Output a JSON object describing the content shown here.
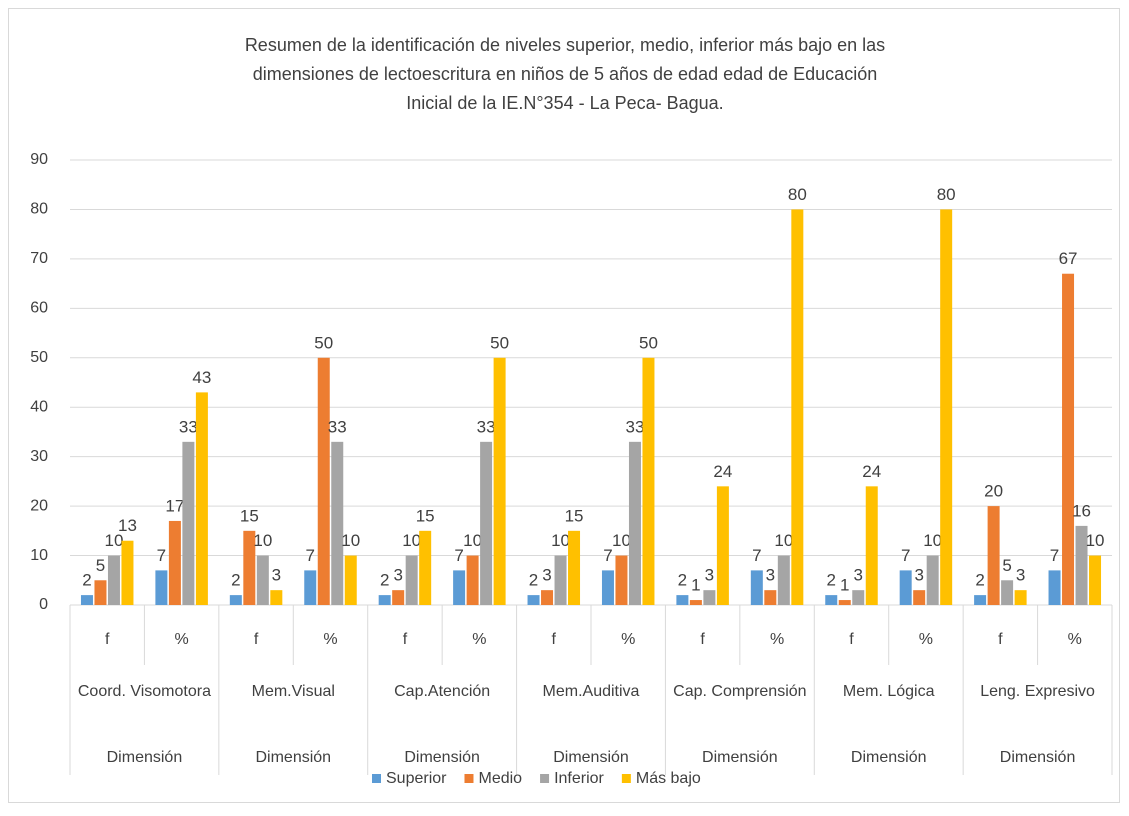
{
  "chart_data": {
    "type": "bar",
    "title": [
      "Resumen  de la identificación de niveles  superior, medio, inferior más bajo en las",
      "dimensiones de lectoescritura  en niños de 5 años de edad edad  de Educación",
      "Inicial de la IE.N°354 - La Peca- Bagua."
    ],
    "categories": [
      "f",
      "%",
      "f",
      "%",
      "f",
      "%",
      "f",
      "%",
      "f",
      "%",
      "f",
      "%",
      "f",
      "%"
    ],
    "groups": [
      "Coord. Visomotora",
      "Mem.Visual",
      "Cap.Atención",
      "Mem.Auditiva",
      "Cap. Comprensión",
      "Mem. Lógica",
      "Leng. Expresivo"
    ],
    "outer_labels": [
      "Dimensión",
      "Dimensión",
      "Dimensión",
      "Dimensión",
      "Dimensión",
      "Dimensión",
      "Dimensión"
    ],
    "series": [
      {
        "name": "Superior",
        "color": "#5b9bd5",
        "values": [
          2,
          7,
          2,
          7,
          2,
          7,
          2,
          7,
          2,
          7,
          2,
          7,
          2,
          7
        ]
      },
      {
        "name": "Medio",
        "color": "#ed7d31",
        "values": [
          5,
          17,
          15,
          50,
          3,
          10,
          3,
          10,
          1,
          3,
          1,
          3,
          20,
          67
        ]
      },
      {
        "name": "Inferior",
        "color": "#a5a5a5",
        "values": [
          10,
          33,
          10,
          33,
          10,
          33,
          10,
          33,
          3,
          10,
          3,
          10,
          5,
          16
        ]
      },
      {
        "name": "Más bajo",
        "color": "#ffc000",
        "values": [
          13,
          43,
          3,
          10,
          15,
          50,
          15,
          50,
          24,
          80,
          24,
          80,
          3,
          10
        ]
      }
    ],
    "ylim": [
      0,
      90
    ],
    "yticks": [
      0,
      10,
      20,
      30,
      40,
      50,
      60,
      70,
      80,
      90
    ],
    "grid": true,
    "legend": "bottom"
  }
}
